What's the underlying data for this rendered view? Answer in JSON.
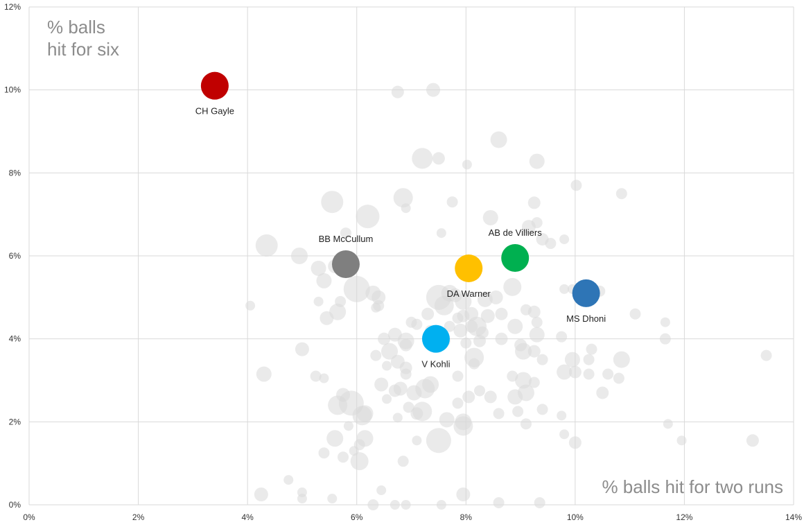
{
  "chart_data": {
    "type": "scatter",
    "ylabel_lines": [
      "% balls",
      "hit for six"
    ],
    "xlabel": "% balls hit for two runs",
    "xlim": [
      0,
      14
    ],
    "ylim": [
      0,
      12
    ],
    "x_ticks": [
      {
        "value": 0,
        "label": "0%"
      },
      {
        "value": 2,
        "label": "2%"
      },
      {
        "value": 4,
        "label": "4%"
      },
      {
        "value": 6,
        "label": "6%"
      },
      {
        "value": 8,
        "label": "8%"
      },
      {
        "value": 10,
        "label": "10%"
      },
      {
        "value": 12,
        "label": "12%"
      },
      {
        "value": 14,
        "label": "14%"
      }
    ],
    "y_ticks": [
      {
        "value": 0,
        "label": "0%"
      },
      {
        "value": 2,
        "label": "2%"
      },
      {
        "value": 4,
        "label": "4%"
      },
      {
        "value": 6,
        "label": "6%"
      },
      {
        "value": 8,
        "label": "8%"
      },
      {
        "value": 10,
        "label": "10%"
      },
      {
        "value": 12,
        "label": "12%"
      }
    ],
    "grid": true,
    "highlighted": [
      {
        "name": "CH Gayle",
        "x": 3.4,
        "y": 10.1,
        "color": "#c00000",
        "label_pos": "below"
      },
      {
        "name": "BB McCullum",
        "x": 5.8,
        "y": 5.8,
        "color": "#7f7f7f",
        "label_pos": "above"
      },
      {
        "name": "DA Warner",
        "x": 8.05,
        "y": 5.7,
        "color": "#ffc000",
        "label_pos": "below"
      },
      {
        "name": "AB de Villiers",
        "x": 8.9,
        "y": 5.95,
        "color": "#00b050",
        "label_pos": "above"
      },
      {
        "name": "MS Dhoni",
        "x": 10.2,
        "y": 5.1,
        "color": "#2e75b6",
        "label_pos": "below"
      },
      {
        "name": "V Kohli",
        "x": 7.45,
        "y": 4.0,
        "color": "#00b0f0",
        "label_pos": "below"
      }
    ],
    "others_color": "#d9d9d9",
    "others": [
      [
        6.75,
        9.95,
        9
      ],
      [
        7.4,
        10.0,
        10
      ],
      [
        8.6,
        8.8,
        12
      ],
      [
        7.2,
        8.35,
        15
      ],
      [
        7.5,
        8.35,
        9
      ],
      [
        8.02,
        8.2,
        7
      ],
      [
        9.3,
        8.28,
        11
      ],
      [
        10.02,
        7.7,
        8
      ],
      [
        10.85,
        7.5,
        8
      ],
      [
        5.55,
        7.3,
        16
      ],
      [
        6.2,
        6.95,
        17
      ],
      [
        6.85,
        7.4,
        14
      ],
      [
        6.9,
        7.15,
        7
      ],
      [
        7.75,
        7.3,
        8
      ],
      [
        9.25,
        7.28,
        9
      ],
      [
        8.45,
        6.92,
        11
      ],
      [
        9.15,
        6.7,
        10
      ],
      [
        9.3,
        6.8,
        8
      ],
      [
        9.4,
        6.4,
        9
      ],
      [
        9.55,
        6.3,
        8
      ],
      [
        9.8,
        6.4,
        7
      ],
      [
        5.8,
        6.55,
        8
      ],
      [
        7.55,
        6.55,
        7
      ],
      [
        4.35,
        6.25,
        16
      ],
      [
        4.95,
        6.0,
        12
      ],
      [
        5.3,
        5.7,
        11
      ],
      [
        5.6,
        5.75,
        10
      ],
      [
        5.4,
        5.4,
        11
      ],
      [
        6.0,
        5.2,
        19
      ],
      [
        6.3,
        5.1,
        11
      ],
      [
        6.4,
        5.0,
        10
      ],
      [
        5.3,
        4.9,
        7
      ],
      [
        5.65,
        4.65,
        12
      ],
      [
        5.45,
        4.5,
        10
      ],
      [
        5.7,
        4.9,
        8
      ],
      [
        6.4,
        4.8,
        8
      ],
      [
        6.35,
        4.75,
        7
      ],
      [
        7.0,
        4.4,
        8
      ],
      [
        7.3,
        4.6,
        9
      ],
      [
        7.6,
        4.8,
        14
      ],
      [
        7.5,
        5.0,
        18
      ],
      [
        7.7,
        5.1,
        12
      ],
      [
        7.95,
        4.9,
        12
      ],
      [
        8.1,
        4.6,
        10
      ],
      [
        8.2,
        4.3,
        14
      ],
      [
        8.35,
        4.95,
        11
      ],
      [
        8.55,
        5.0,
        10
      ],
      [
        8.4,
        4.55,
        10
      ],
      [
        8.65,
        4.6,
        9
      ],
      [
        8.85,
        5.25,
        13
      ],
      [
        8.9,
        4.3,
        11
      ],
      [
        9.1,
        4.7,
        8
      ],
      [
        9.25,
        4.65,
        9
      ],
      [
        9.3,
        4.4,
        8
      ],
      [
        9.3,
        4.1,
        11
      ],
      [
        9.0,
        3.85,
        9
      ],
      [
        9.05,
        3.7,
        12
      ],
      [
        9.25,
        3.7,
        9
      ],
      [
        8.65,
        4.0,
        9
      ],
      [
        8.25,
        3.95,
        9
      ],
      [
        7.9,
        4.2,
        10
      ],
      [
        7.7,
        4.3,
        8
      ],
      [
        7.85,
        4.5,
        8
      ],
      [
        7.35,
        4.2,
        8
      ],
      [
        7.1,
        4.35,
        8
      ],
      [
        6.7,
        4.1,
        10
      ],
      [
        6.5,
        4.0,
        9
      ],
      [
        6.9,
        3.95,
        12
      ],
      [
        7.6,
        3.95,
        9
      ],
      [
        8.0,
        3.9,
        8
      ],
      [
        8.15,
        3.55,
        14
      ],
      [
        8.15,
        3.4,
        8
      ],
      [
        9.4,
        3.5,
        8
      ],
      [
        9.95,
        3.5,
        11
      ],
      [
        10.0,
        3.2,
        9
      ],
      [
        10.25,
        3.5,
        8
      ],
      [
        10.25,
        3.15,
        8
      ],
      [
        10.3,
        3.75,
        8
      ],
      [
        10.6,
        3.15,
        8
      ],
      [
        10.85,
        3.5,
        12
      ],
      [
        10.8,
        3.05,
        8
      ],
      [
        10.5,
        2.7,
        9
      ],
      [
        11.1,
        4.6,
        8
      ],
      [
        11.65,
        4.4,
        7
      ],
      [
        11.65,
        4.0,
        8
      ],
      [
        9.75,
        4.05,
        8
      ],
      [
        9.8,
        3.2,
        11
      ],
      [
        9.8,
        5.2,
        7
      ],
      [
        9.95,
        5.2,
        7
      ],
      [
        10.45,
        5.15,
        8
      ],
      [
        7.85,
        3.1,
        8
      ],
      [
        7.85,
        2.45,
        8
      ],
      [
        8.05,
        2.6,
        9
      ],
      [
        8.25,
        2.75,
        8
      ],
      [
        8.45,
        2.6,
        9
      ],
      [
        8.6,
        2.2,
        8
      ],
      [
        8.9,
        2.6,
        11
      ],
      [
        9.1,
        2.7,
        12
      ],
      [
        9.05,
        3.0,
        12
      ],
      [
        9.25,
        2.95,
        8
      ],
      [
        8.85,
        3.1,
        8
      ],
      [
        8.95,
        2.25,
        8
      ],
      [
        9.4,
        2.3,
        8
      ],
      [
        9.75,
        2.15,
        7
      ],
      [
        9.1,
        1.95,
        8
      ],
      [
        9.8,
        1.7,
        7
      ],
      [
        10.0,
        1.5,
        9
      ],
      [
        11.7,
        1.95,
        7
      ],
      [
        11.95,
        1.55,
        7
      ],
      [
        13.25,
        1.55,
        9
      ],
      [
        13.5,
        3.6,
        8
      ],
      [
        7.35,
        2.9,
        12
      ],
      [
        7.25,
        2.8,
        14
      ],
      [
        7.05,
        2.7,
        11
      ],
      [
        7.1,
        2.2,
        9
      ],
      [
        7.2,
        2.25,
        14
      ],
      [
        6.8,
        2.8,
        10
      ],
      [
        6.95,
        2.35,
        8
      ],
      [
        6.7,
        2.75,
        9
      ],
      [
        6.45,
        2.9,
        10
      ],
      [
        6.55,
        2.55,
        7
      ],
      [
        6.75,
        2.1,
        7
      ],
      [
        7.65,
        2.05,
        11
      ],
      [
        7.95,
        1.9,
        14
      ],
      [
        7.95,
        2.0,
        12
      ],
      [
        7.5,
        1.55,
        18
      ],
      [
        7.1,
        1.55,
        7
      ],
      [
        6.6,
        3.7,
        12
      ],
      [
        6.35,
        3.6,
        8
      ],
      [
        6.55,
        3.35,
        7
      ],
      [
        6.75,
        3.45,
        10
      ],
      [
        6.9,
        3.3,
        9
      ],
      [
        6.9,
        3.15,
        8
      ],
      [
        6.9,
        3.85,
        9
      ],
      [
        5.9,
        2.45,
        18
      ],
      [
        5.65,
        2.4,
        14
      ],
      [
        5.75,
        2.65,
        10
      ],
      [
        6.1,
        2.15,
        14
      ],
      [
        6.15,
        2.2,
        12
      ],
      [
        5.85,
        1.9,
        7
      ],
      [
        6.05,
        1.45,
        8
      ],
      [
        6.15,
        1.6,
        12
      ],
      [
        5.95,
        1.3,
        7
      ],
      [
        6.05,
        1.05,
        13
      ],
      [
        5.6,
        1.6,
        12
      ],
      [
        5.75,
        1.15,
        8
      ],
      [
        5.4,
        1.25,
        8
      ],
      [
        4.3,
        3.15,
        11
      ],
      [
        5.0,
        3.75,
        10
      ],
      [
        5.25,
        3.1,
        8
      ],
      [
        5.4,
        3.05,
        7
      ],
      [
        4.05,
        4.8,
        7
      ],
      [
        6.85,
        1.05,
        8
      ],
      [
        7.95,
        0.25,
        10
      ],
      [
        8.6,
        0.05,
        8
      ],
      [
        9.35,
        0.05,
        8
      ],
      [
        7.55,
        0.0,
        7
      ],
      [
        6.3,
        0.0,
        8
      ],
      [
        6.7,
        0.0,
        7
      ],
      [
        6.9,
        0.0,
        7
      ],
      [
        6.45,
        0.35,
        7
      ],
      [
        5.55,
        0.15,
        7
      ],
      [
        5.0,
        0.15,
        7
      ],
      [
        5.0,
        0.3,
        7
      ],
      [
        4.75,
        0.6,
        7
      ],
      [
        4.25,
        0.25,
        10
      ],
      [
        7.8,
        5.05,
        10
      ],
      [
        7.95,
        4.55,
        9
      ],
      [
        8.1,
        4.3,
        9
      ],
      [
        8.3,
        4.15,
        9
      ]
    ]
  }
}
